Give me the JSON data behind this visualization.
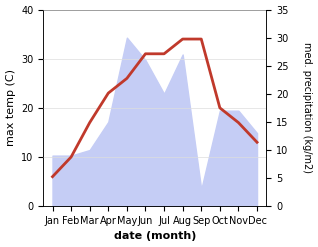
{
  "months": [
    "Jan",
    "Feb",
    "Mar",
    "Apr",
    "May",
    "Jun",
    "Jul",
    "Aug",
    "Sep",
    "Oct",
    "Nov",
    "Dec"
  ],
  "month_indices": [
    1,
    2,
    3,
    4,
    5,
    6,
    7,
    8,
    9,
    10,
    11,
    12
  ],
  "max_temp": [
    6,
    10,
    17,
    23,
    26,
    31,
    31,
    34,
    34,
    20,
    17,
    13
  ],
  "precipitation": [
    9,
    9,
    10,
    15,
    30,
    26,
    20,
    27,
    3,
    17,
    17,
    13
  ],
  "temp_color": "#c0392b",
  "precip_color_fill": "#c5cdf5",
  "temp_ylim": [
    0,
    40
  ],
  "precip_ylim": [
    0,
    35
  ],
  "temp_yticks": [
    0,
    10,
    20,
    30,
    40
  ],
  "precip_yticks": [
    0,
    5,
    10,
    15,
    20,
    25,
    30,
    35
  ],
  "xlabel": "date (month)",
  "ylabel_left": "max temp (C)",
  "ylabel_right": "med. precipitation (kg/m2)",
  "line_width": 2.0,
  "background_color": "#ffffff"
}
